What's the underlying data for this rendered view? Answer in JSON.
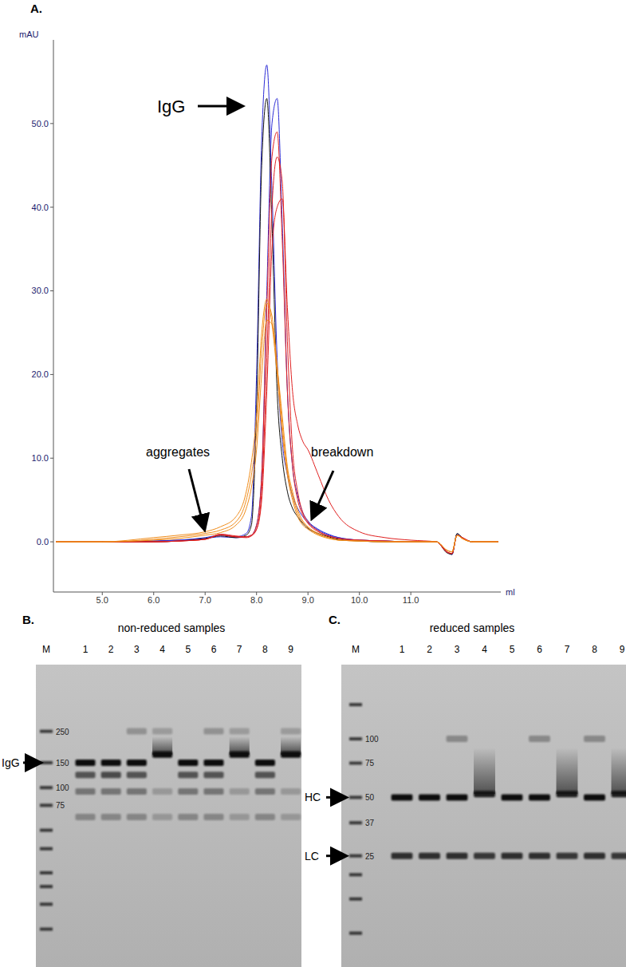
{
  "panel_labels": [
    "A.",
    "B.",
    "C."
  ],
  "chart_data": {
    "type": "line",
    "x_label": "ml",
    "y_label": "mAU",
    "annotations": [
      "IgG",
      "aggregates",
      "breakdown"
    ],
    "xlim": [
      4.05,
      12.75
    ],
    "ylim": [
      -6,
      60
    ],
    "xticks": [
      {
        "value": 5,
        "label": "5.0"
      },
      {
        "value": 6,
        "label": "6.0"
      },
      {
        "value": 7,
        "label": "7.0"
      },
      {
        "value": 8,
        "label": "8.0"
      },
      {
        "value": 9,
        "label": "9.0"
      },
      {
        "value": 10,
        "label": "10.0"
      },
      {
        "value": 11,
        "label": "11.0"
      }
    ],
    "yticks": [
      {
        "value": 0,
        "label": "0.0"
      },
      {
        "value": 10,
        "label": "10.0"
      },
      {
        "value": 20,
        "label": "20.0"
      },
      {
        "value": 30,
        "label": "30.0"
      },
      {
        "value": 40,
        "label": "40.0"
      },
      {
        "value": 50,
        "label": "50.0"
      }
    ],
    "grid": false,
    "x": [
      4.1,
      5,
      6,
      6.5,
      7,
      7.3,
      7.6,
      7.8,
      7.9,
      8.0,
      8.1,
      8.2,
      8.3,
      8.4,
      8.5,
      8.6,
      8.7,
      8.8,
      8.9,
      9.0,
      9.2,
      9.4,
      9.6,
      10,
      10.5,
      11,
      11.5,
      11.7,
      11.8,
      11.9,
      12.0,
      12.2,
      12.7
    ],
    "series": [
      {
        "color": "#2b2bd6",
        "values": [
          0,
          0,
          0.1,
          0.2,
          0.5,
          0.8,
          0.6,
          1,
          3,
          20,
          48,
          57,
          42,
          22,
          12,
          8,
          5.5,
          4,
          3,
          2.3,
          1.4,
          0.8,
          0.5,
          0.2,
          0.1,
          0,
          0,
          -1.2,
          -1.5,
          0.9,
          0.5,
          0,
          0
        ]
      },
      {
        "color": "#2b2bd6",
        "values": [
          0,
          0,
          0.1,
          0.2,
          0.4,
          0.6,
          0.5,
          0.6,
          0.8,
          2,
          8,
          30,
          50,
          53,
          38,
          18,
          9,
          5.5,
          3.5,
          2.5,
          1.5,
          0.9,
          0.5,
          0.2,
          0.1,
          0,
          0,
          -1.2,
          -1.5,
          0.9,
          0.5,
          0,
          0
        ]
      },
      {
        "color": "#111111",
        "values": [
          0,
          0,
          0,
          0.1,
          0.4,
          0.7,
          0.5,
          0.8,
          2,
          16,
          45,
          53,
          38,
          18,
          10,
          6,
          4,
          3,
          2.2,
          1.6,
          1,
          0.6,
          0.3,
          0.1,
          0,
          0,
          0,
          -1.3,
          -1.5,
          1,
          0.5,
          0,
          0
        ]
      },
      {
        "color": "#e02020",
        "values": [
          0,
          0,
          0,
          0.1,
          0.3,
          0.8,
          0.6,
          0.6,
          0.8,
          2,
          8,
          28,
          46,
          49,
          36,
          18,
          9,
          5,
          3.2,
          2.2,
          1.2,
          0.7,
          0.4,
          0.2,
          0.1,
          0,
          0,
          -1.2,
          -1.4,
          0.8,
          0.5,
          0,
          0
        ]
      },
      {
        "color": "#e02020",
        "values": [
          0,
          0,
          0,
          0.1,
          0.3,
          0.9,
          0.6,
          0.5,
          0.7,
          1.5,
          6,
          22,
          40,
          46,
          43,
          24,
          11,
          6,
          3.5,
          2.4,
          1.3,
          0.7,
          0.4,
          0.2,
          0.1,
          0,
          0,
          -1.2,
          -1.4,
          0.8,
          0.5,
          0,
          0
        ]
      },
      {
        "color": "#e02020",
        "values": [
          0,
          0,
          0,
          0.1,
          0.3,
          0.9,
          0.7,
          0.6,
          0.8,
          1.5,
          5,
          18,
          35,
          40,
          41,
          28,
          18,
          14,
          12,
          11,
          8,
          5,
          3,
          1.2,
          0.5,
          0.2,
          0,
          -1.2,
          -1.4,
          0.8,
          0.5,
          0,
          0
        ]
      },
      {
        "color": "#f08c1a",
        "values": [
          0,
          0,
          0.5,
          0.8,
          1.2,
          1.8,
          3,
          6,
          9.5,
          15,
          25,
          29,
          26,
          20,
          13,
          8,
          5,
          3,
          2,
          1.5,
          0.8,
          0.4,
          0.2,
          0.1,
          0,
          0,
          0,
          -1,
          -1.2,
          0.8,
          0.4,
          0,
          0
        ]
      },
      {
        "color": "#f08c1a",
        "values": [
          0,
          0,
          0.3,
          0.6,
          1,
          1.4,
          2.4,
          5,
          8,
          13,
          23,
          28.5,
          27,
          21,
          14,
          8.5,
          5.5,
          3.4,
          2.3,
          1.7,
          0.9,
          0.5,
          0.2,
          0.1,
          0,
          0,
          0,
          -1,
          -1.2,
          0.8,
          0.4,
          0,
          0
        ]
      },
      {
        "color": "#f08c1a",
        "values": [
          0,
          0,
          0.2,
          0.4,
          0.8,
          1.1,
          2,
          4,
          6.5,
          11,
          20,
          26.5,
          26,
          21,
          15,
          9,
          6,
          3.8,
          2.5,
          1.8,
          1,
          0.5,
          0.2,
          0.1,
          0,
          0,
          0,
          -1,
          -1.2,
          0.8,
          0.4,
          0,
          0
        ]
      }
    ]
  },
  "gels": [
    {
      "title": "non-reduced samples",
      "marker_label": "M",
      "lanes": [
        "1",
        "2",
        "3",
        "4",
        "5",
        "6",
        "7",
        "8",
        "9"
      ],
      "ylim": [
        5.4,
        740
      ],
      "ladder": [
        250,
        150,
        100,
        75,
        50,
        37,
        25,
        20,
        15,
        10
      ],
      "ladder_ticks": [
        250,
        150,
        100,
        75
      ],
      "arrows": [
        {
          "label": "IgG",
          "kDa": 150
        }
      ],
      "bands": [
        [
          {
            "kDa": 150,
            "intensity": 1
          },
          {
            "kDa": 123,
            "intensity": 0.6
          },
          {
            "kDa": 94,
            "intensity": 0.4
          },
          {
            "kDa": 62,
            "intensity": 0.3
          }
        ],
        [
          {
            "kDa": 150,
            "intensity": 1
          },
          {
            "kDa": 123,
            "intensity": 0.65
          },
          {
            "kDa": 94,
            "intensity": 0.4
          },
          {
            "kDa": 62,
            "intensity": 0.3
          }
        ],
        [
          {
            "kDa": 250,
            "intensity": 0.25
          },
          {
            "kDa": 150,
            "intensity": 1
          },
          {
            "kDa": 123,
            "intensity": 0.6
          },
          {
            "kDa": 94,
            "intensity": 0.4
          },
          {
            "kDa": 62,
            "intensity": 0.3
          }
        ],
        [
          {
            "kDa": 250,
            "intensity": 0.2
          },
          {
            "kDa": 171,
            "intensity": 1,
            "smear_to": 230
          },
          {
            "kDa": 94,
            "intensity": 0.2
          },
          {
            "kDa": 62,
            "intensity": 0.2
          }
        ],
        [
          {
            "kDa": 150,
            "intensity": 1
          },
          {
            "kDa": 123,
            "intensity": 0.6
          },
          {
            "kDa": 94,
            "intensity": 0.4
          },
          {
            "kDa": 62,
            "intensity": 0.3
          }
        ],
        [
          {
            "kDa": 250,
            "intensity": 0.25
          },
          {
            "kDa": 150,
            "intensity": 1
          },
          {
            "kDa": 123,
            "intensity": 0.6
          },
          {
            "kDa": 94,
            "intensity": 0.4
          },
          {
            "kDa": 62,
            "intensity": 0.3
          }
        ],
        [
          {
            "kDa": 250,
            "intensity": 0.2
          },
          {
            "kDa": 171,
            "intensity": 1,
            "smear_to": 230
          },
          {
            "kDa": 94,
            "intensity": 0.2
          },
          {
            "kDa": 62,
            "intensity": 0.2
          }
        ],
        [
          {
            "kDa": 150,
            "intensity": 1
          },
          {
            "kDa": 123,
            "intensity": 0.6
          },
          {
            "kDa": 94,
            "intensity": 0.4
          },
          {
            "kDa": 62,
            "intensity": 0.3
          }
        ],
        [
          {
            "kDa": 250,
            "intensity": 0.2
          },
          {
            "kDa": 171,
            "intensity": 1,
            "smear_to": 230
          },
          {
            "kDa": 94,
            "intensity": 0.2
          },
          {
            "kDa": 62,
            "intensity": 0.2
          }
        ]
      ]
    },
    {
      "title": "reduced samples",
      "marker_label": "M",
      "lanes": [
        "1",
        "2",
        "3",
        "4",
        "5",
        "6",
        "7",
        "8",
        "9"
      ],
      "ylim": [
        6.7,
        241
      ],
      "ladder": [
        150,
        100,
        75,
        50,
        37,
        25,
        20,
        15,
        10
      ],
      "ladder_ticks": [
        100,
        75,
        50,
        37,
        25
      ],
      "arrows": [
        {
          "label": "HC",
          "kDa": 50
        },
        {
          "label": "LC",
          "kDa": 25
        }
      ],
      "bands": [
        [
          {
            "kDa": 50,
            "intensity": 1
          },
          {
            "kDa": 25,
            "intensity": 0.8
          }
        ],
        [
          {
            "kDa": 50,
            "intensity": 1
          },
          {
            "kDa": 25,
            "intensity": 0.8
          }
        ],
        [
          {
            "kDa": 100,
            "intensity": 0.3
          },
          {
            "kDa": 50,
            "intensity": 1
          },
          {
            "kDa": 25,
            "intensity": 0.8
          }
        ],
        [
          {
            "kDa": 52,
            "intensity": 0.9,
            "smear_to": 90
          },
          {
            "kDa": 25,
            "intensity": 0.75
          }
        ],
        [
          {
            "kDa": 50,
            "intensity": 1
          },
          {
            "kDa": 25,
            "intensity": 0.8
          }
        ],
        [
          {
            "kDa": 100,
            "intensity": 0.3
          },
          {
            "kDa": 50,
            "intensity": 1
          },
          {
            "kDa": 25,
            "intensity": 0.8
          }
        ],
        [
          {
            "kDa": 52,
            "intensity": 0.9,
            "smear_to": 90
          },
          {
            "kDa": 25,
            "intensity": 0.75
          }
        ],
        [
          {
            "kDa": 100,
            "intensity": 0.3
          },
          {
            "kDa": 50,
            "intensity": 1
          },
          {
            "kDa": 25,
            "intensity": 0.8
          }
        ],
        [
          {
            "kDa": 52,
            "intensity": 0.9,
            "smear_to": 90
          },
          {
            "kDa": 25,
            "intensity": 0.75
          }
        ]
      ]
    }
  ]
}
